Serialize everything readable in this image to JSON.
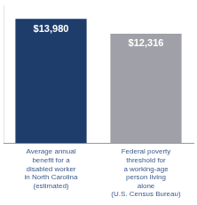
{
  "chart_data": {
    "type": "bar",
    "categories": [
      "Average annual\nbenefit for a\ndisabled worker\nin North Carolina\n(estimated)",
      "Federal poverty\nthreshold for\na working-age\nperson living\nalone\n(U.S. Census Bureau)"
    ],
    "values": [
      13980,
      12316
    ],
    "value_labels": [
      "$13,980",
      "$12,316"
    ],
    "colors": [
      "#1e3d6b",
      "#a0a0a8"
    ],
    "ylim": [
      0,
      15500
    ],
    "grid": false,
    "legend": false,
    "data_labels": true,
    "tick_labels": "x"
  }
}
